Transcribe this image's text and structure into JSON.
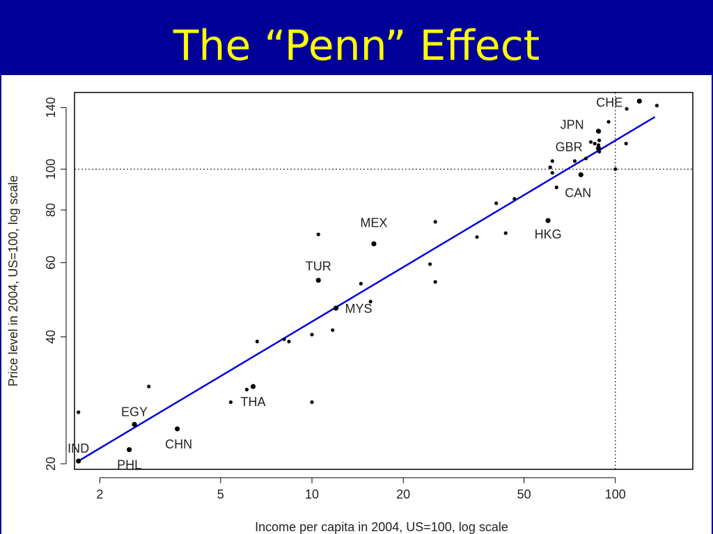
{
  "slide": {
    "title": "The “Penn” Effect",
    "title_color": "#ffff00",
    "band_color": "#000099"
  },
  "chart_data": {
    "type": "scatter",
    "xlabel": "Income per capita in 2004, US=100, log scale",
    "ylabel": "Price level in 2004, US=100, log scale",
    "x_scale": "log",
    "y_scale": "log",
    "xlim": [
      1.65,
      180
    ],
    "ylim": [
      19.4,
      152
    ],
    "x_ticks": [
      2,
      5,
      10,
      20,
      50,
      100
    ],
    "y_ticks": [
      20,
      40,
      60,
      80,
      100,
      140
    ],
    "grid": false,
    "reference_lines": {
      "x": 100,
      "y": 100,
      "style": "dotted"
    },
    "fit_line": {
      "color": "#0000dd",
      "from": {
        "x": 1.7,
        "y": 20.3
      },
      "to": {
        "x": 135,
        "y": 133
      }
    },
    "point_color": "#000000",
    "labeled_points": [
      {
        "label": "IND",
        "x": 1.7,
        "y": 20.3
      },
      {
        "label": "PHL",
        "x": 2.5,
        "y": 21.6
      },
      {
        "label": "EGY",
        "x": 2.6,
        "y": 24.8
      },
      {
        "label": "CHN",
        "x": 3.6,
        "y": 24.2
      },
      {
        "label": "THA",
        "x": 6.4,
        "y": 30.5
      },
      {
        "label": "TUR",
        "x": 10.5,
        "y": 54.5
      },
      {
        "label": "MYS",
        "x": 12,
        "y": 46.8
      },
      {
        "label": "MEX",
        "x": 16,
        "y": 66.5
      },
      {
        "label": "HKG",
        "x": 60,
        "y": 75.5
      },
      {
        "label": "CAN",
        "x": 77,
        "y": 97
      },
      {
        "label": "GBR",
        "x": 88,
        "y": 112
      },
      {
        "label": "JPN",
        "x": 88,
        "y": 123
      },
      {
        "label": "CHE",
        "x": 120,
        "y": 145
      }
    ],
    "points": [
      {
        "x": 1.7,
        "y": 26.5
      },
      {
        "x": 2.9,
        "y": 30.5
      },
      {
        "x": 5.4,
        "y": 28
      },
      {
        "x": 6.1,
        "y": 30
      },
      {
        "x": 6.6,
        "y": 39
      },
      {
        "x": 8.1,
        "y": 39.5
      },
      {
        "x": 8.4,
        "y": 39
      },
      {
        "x": 10,
        "y": 40.5
      },
      {
        "x": 10,
        "y": 28
      },
      {
        "x": 10.5,
        "y": 70
      },
      {
        "x": 11.7,
        "y": 41.5
      },
      {
        "x": 14.5,
        "y": 53.5
      },
      {
        "x": 15.6,
        "y": 48.5
      },
      {
        "x": 24.5,
        "y": 59.5
      },
      {
        "x": 25.5,
        "y": 54
      },
      {
        "x": 25.5,
        "y": 75
      },
      {
        "x": 35,
        "y": 69
      },
      {
        "x": 40.5,
        "y": 83
      },
      {
        "x": 43.5,
        "y": 70.5
      },
      {
        "x": 46.5,
        "y": 85
      },
      {
        "x": 61,
        "y": 101
      },
      {
        "x": 62,
        "y": 104.5
      },
      {
        "x": 62,
        "y": 98
      },
      {
        "x": 64,
        "y": 90.5
      },
      {
        "x": 73.5,
        "y": 104.5
      },
      {
        "x": 80,
        "y": 106
      },
      {
        "x": 83,
        "y": 116
      },
      {
        "x": 85.5,
        "y": 115
      },
      {
        "x": 88,
        "y": 114
      },
      {
        "x": 88.5,
        "y": 117
      },
      {
        "x": 88.5,
        "y": 110
      },
      {
        "x": 95,
        "y": 129.5
      },
      {
        "x": 100,
        "y": 100
      },
      {
        "x": 108.5,
        "y": 115
      },
      {
        "x": 109,
        "y": 139
      },
      {
        "x": 137,
        "y": 141.5
      }
    ]
  }
}
